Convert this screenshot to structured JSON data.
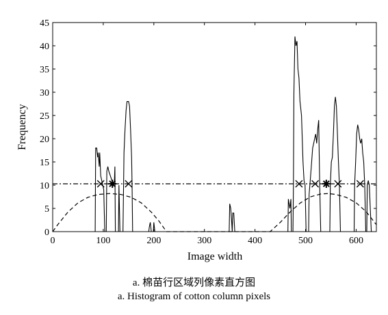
{
  "chart_data": {
    "type": "line",
    "xlabel": "Image width",
    "ylabel": "Frequency",
    "xlim": [
      0,
      640
    ],
    "ylim": [
      0,
      45
    ],
    "xticks": [
      0,
      100,
      200,
      300,
      400,
      500,
      600
    ],
    "yticks": [
      0,
      5,
      10,
      15,
      20,
      25,
      30,
      35,
      40,
      45
    ],
    "grid": false,
    "series": [
      {
        "style": "solid",
        "points": [
          [
            0,
            0
          ],
          [
            84,
            0
          ],
          [
            85,
            18
          ],
          [
            87,
            18
          ],
          [
            89,
            16
          ],
          [
            90,
            17
          ],
          [
            92,
            14
          ],
          [
            93,
            17
          ],
          [
            95,
            12
          ],
          [
            97,
            11
          ],
          [
            99,
            10
          ],
          [
            101,
            9
          ],
          [
            103,
            0
          ],
          [
            106,
            0
          ],
          [
            107,
            13
          ],
          [
            109,
            14
          ],
          [
            111,
            13
          ],
          [
            114,
            12
          ],
          [
            117,
            11
          ],
          [
            120,
            10
          ],
          [
            122,
            11
          ],
          [
            123,
            14
          ],
          [
            124,
            0
          ],
          [
            130,
            0
          ],
          [
            131,
            10
          ],
          [
            133,
            0
          ],
          [
            139,
            0
          ],
          [
            141,
            17
          ],
          [
            143,
            22
          ],
          [
            145,
            26
          ],
          [
            147,
            28
          ],
          [
            150,
            28
          ],
          [
            152,
            27
          ],
          [
            154,
            22
          ],
          [
            156,
            16
          ],
          [
            157,
            10
          ],
          [
            158,
            0
          ],
          [
            190,
            0
          ],
          [
            191,
            1
          ],
          [
            193,
            2
          ],
          [
            195,
            0
          ],
          [
            199,
            0
          ],
          [
            200,
            2
          ],
          [
            202,
            0
          ],
          [
            349,
            0
          ],
          [
            350,
            6
          ],
          [
            352,
            5
          ],
          [
            354,
            2
          ],
          [
            355,
            0
          ],
          [
            356,
            4
          ],
          [
            358,
            4
          ],
          [
            360,
            0
          ],
          [
            465,
            0
          ],
          [
            466,
            7
          ],
          [
            469,
            5
          ],
          [
            471,
            7
          ],
          [
            472,
            0
          ],
          [
            475,
            0
          ],
          [
            476,
            10
          ],
          [
            477,
            30
          ],
          [
            479,
            42
          ],
          [
            481,
            40
          ],
          [
            483,
            41
          ],
          [
            485,
            35
          ],
          [
            487,
            33
          ],
          [
            489,
            28
          ],
          [
            492,
            25
          ],
          [
            495,
            15
          ],
          [
            497,
            11
          ],
          [
            499,
            10
          ],
          [
            501,
            0
          ],
          [
            506,
            0
          ],
          [
            507,
            8
          ],
          [
            510,
            12
          ],
          [
            512,
            15
          ],
          [
            514,
            18
          ],
          [
            516,
            19
          ],
          [
            518,
            20
          ],
          [
            520,
            21
          ],
          [
            522,
            19
          ],
          [
            524,
            22
          ],
          [
            526,
            24
          ],
          [
            528,
            10
          ],
          [
            530,
            0
          ],
          [
            548,
            0
          ],
          [
            549,
            10
          ],
          [
            551,
            15
          ],
          [
            553,
            16
          ],
          [
            555,
            21
          ],
          [
            557,
            27
          ],
          [
            559,
            29
          ],
          [
            561,
            27
          ],
          [
            563,
            21
          ],
          [
            565,
            15
          ],
          [
            567,
            10
          ],
          [
            569,
            0
          ],
          [
            596,
            0
          ],
          [
            597,
            10
          ],
          [
            599,
            15
          ],
          [
            601,
            21
          ],
          [
            603,
            23
          ],
          [
            605,
            22
          ],
          [
            607,
            20
          ],
          [
            609,
            19
          ],
          [
            611,
            20
          ],
          [
            613,
            17
          ],
          [
            615,
            15
          ],
          [
            617,
            10
          ],
          [
            619,
            0
          ],
          [
            621,
            0
          ],
          [
            622,
            10
          ],
          [
            624,
            11
          ],
          [
            626,
            10
          ],
          [
            628,
            5
          ],
          [
            630,
            0
          ],
          [
            640,
            0
          ]
        ]
      },
      {
        "style": "dashed",
        "points": [
          [
            0,
            0
          ],
          [
            10,
            1.5
          ],
          [
            30,
            4.2
          ],
          [
            50,
            6.2
          ],
          [
            70,
            7.4
          ],
          [
            90,
            8
          ],
          [
            113,
            8.2
          ],
          [
            135,
            8
          ],
          [
            155,
            7.4
          ],
          [
            175,
            6.2
          ],
          [
            195,
            4.2
          ],
          [
            210,
            2.3
          ],
          [
            225,
            0
          ],
          [
            430,
            0
          ],
          [
            450,
            2
          ],
          [
            470,
            4.3
          ],
          [
            490,
            6.2
          ],
          [
            510,
            7.5
          ],
          [
            530,
            8.1
          ],
          [
            545,
            8.2
          ],
          [
            560,
            8
          ],
          [
            580,
            7.4
          ],
          [
            600,
            6.2
          ],
          [
            620,
            4.3
          ],
          [
            640,
            1.5
          ]
        ]
      },
      {
        "style": "dashdot",
        "points": [
          [
            0,
            10.3
          ],
          [
            640,
            10.3
          ]
        ]
      }
    ],
    "markers": [
      {
        "shape": "x",
        "x": 95,
        "y": 10.3
      },
      {
        "shape": "x",
        "x": 150,
        "y": 10.3
      },
      {
        "shape": "asterisk",
        "x": 118,
        "y": 10.3
      },
      {
        "shape": "x",
        "x": 487,
        "y": 10.3
      },
      {
        "shape": "x",
        "x": 519,
        "y": 10.3
      },
      {
        "shape": "asterisk",
        "x": 541,
        "y": 10.3
      },
      {
        "shape": "x",
        "x": 564,
        "y": 10.3
      },
      {
        "shape": "x",
        "x": 608,
        "y": 10.3
      }
    ]
  },
  "caption": {
    "line1": "a. 棉苗行区域列像素直方图",
    "line2": "a. Histogram of cotton column pixels"
  }
}
